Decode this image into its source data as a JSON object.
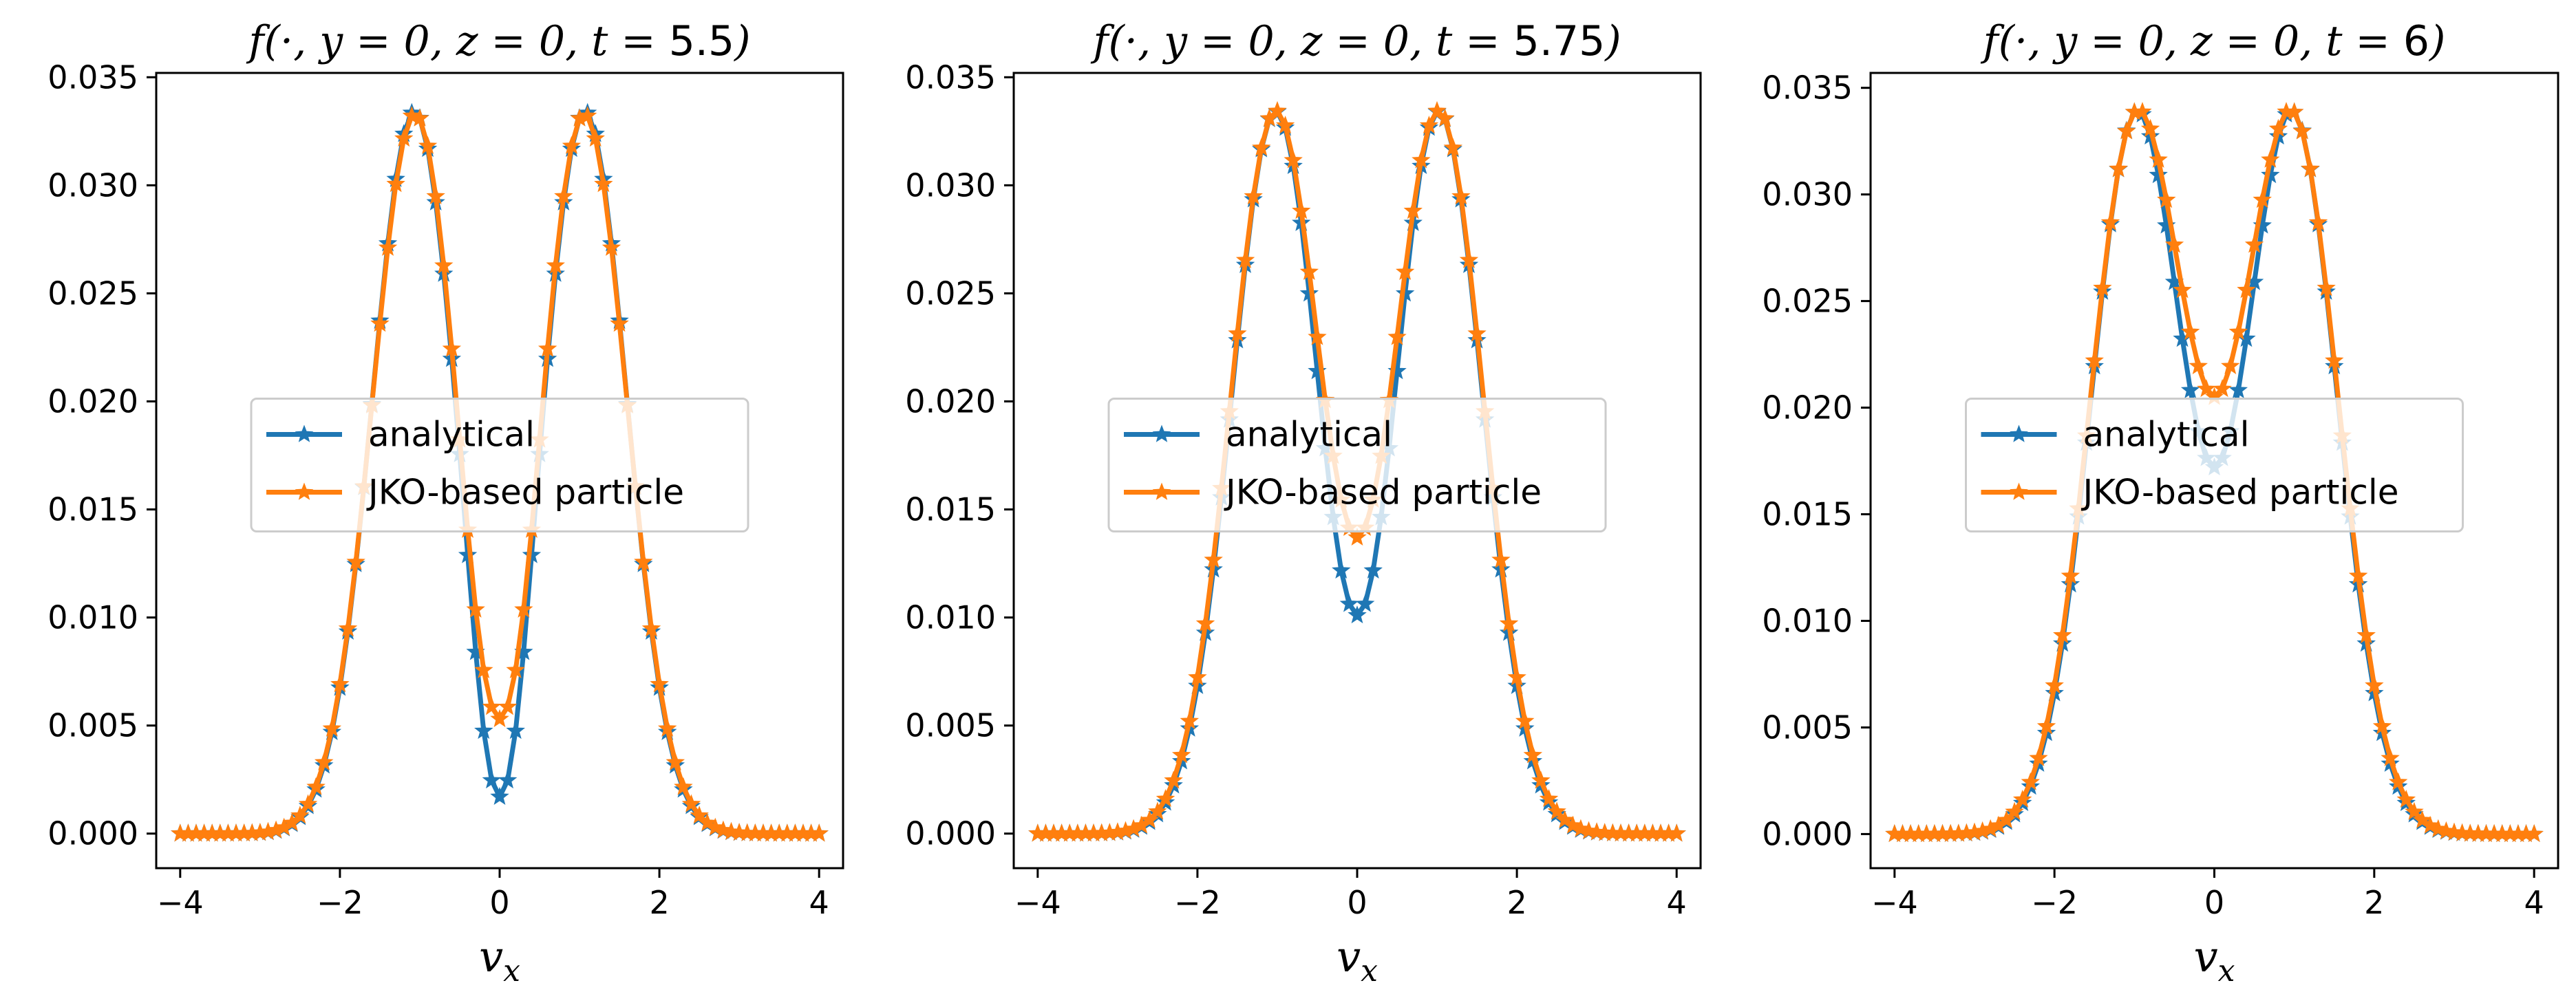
{
  "chart_data": [
    {
      "type": "line",
      "title": "f(·, y = 0, z = 0, t = 5.5)",
      "xlabel": "v_x",
      "ylabel": "",
      "xlim": [
        -4.3,
        4.3
      ],
      "ylim": [
        -0.0016,
        0.0352
      ],
      "xticks": [
        -4,
        -2,
        0,
        2,
        4
      ],
      "xtick_labels": [
        "−4",
        "−2",
        "0",
        "2",
        "4"
      ],
      "yticks": [
        0.0,
        0.005,
        0.01,
        0.015,
        0.02,
        0.025,
        0.03,
        0.035
      ],
      "ytick_labels": [
        "0.000",
        "0.005",
        "0.010",
        "0.015",
        "0.020",
        "0.025",
        "0.030",
        "0.035"
      ],
      "legend_position": "center",
      "x": {
        "start": -4,
        "stop": 4,
        "count": 81
      },
      "series": [
        {
          "name": "analytical",
          "color": "#1f77b4",
          "marker": "star",
          "model": {
            "peak": 0.0334,
            "center": 1.07,
            "sigma": 0.52,
            "dip": 0.0017,
            "dip_sigma": 0.22
          }
        },
        {
          "name": "JKO-based particle",
          "color": "#ff7f0e",
          "marker": "star",
          "model": {
            "peak": 0.0333,
            "center": 1.06,
            "sigma": 0.53,
            "dip": 0.0053,
            "dip_sigma": 0.26
          }
        }
      ]
    },
    {
      "type": "line",
      "title": "f(·, y = 0, z = 0, t = 5.75)",
      "xlabel": "v_x",
      "ylabel": "",
      "xlim": [
        -4.3,
        4.3
      ],
      "ylim": [
        -0.0016,
        0.0352
      ],
      "xticks": [
        -4,
        -2,
        0,
        2,
        4
      ],
      "xtick_labels": [
        "−4",
        "−2",
        "0",
        "2",
        "4"
      ],
      "yticks": [
        0.0,
        0.005,
        0.01,
        0.015,
        0.02,
        0.025,
        0.03,
        0.035
      ],
      "ytick_labels": [
        "0.000",
        "0.005",
        "0.010",
        "0.015",
        "0.020",
        "0.025",
        "0.030",
        "0.035"
      ],
      "legend_position": "center",
      "x": {
        "start": -4,
        "stop": 4,
        "count": 81
      },
      "series": [
        {
          "name": "analytical",
          "color": "#1f77b4",
          "marker": "star",
          "model": {
            "peak": 0.0334,
            "center": 1.02,
            "sigma": 0.55,
            "dip": 0.0101,
            "dip_sigma": 0.28
          }
        },
        {
          "name": "JKO-based particle",
          "color": "#ff7f0e",
          "marker": "star",
          "model": {
            "peak": 0.0334,
            "center": 1.02,
            "sigma": 0.56,
            "dip": 0.0137,
            "dip_sigma": 0.3
          }
        }
      ]
    },
    {
      "type": "line",
      "title": "f(·, y = 0, z = 0, t = 6)",
      "xlabel": "v_x",
      "ylabel": "",
      "xlim": [
        -4.3,
        4.3
      ],
      "ylim": [
        -0.0016,
        0.0357
      ],
      "xticks": [
        -4,
        -2,
        0,
        2,
        4
      ],
      "xtick_labels": [
        "−4",
        "−2",
        "0",
        "2",
        "4"
      ],
      "yticks": [
        0.0,
        0.005,
        0.01,
        0.015,
        0.02,
        0.025,
        0.03,
        0.035
      ],
      "ytick_labels": [
        "0.000",
        "0.005",
        "0.010",
        "0.015",
        "0.020",
        "0.025",
        "0.030",
        "0.035"
      ],
      "legend_position": "center",
      "x": {
        "start": -4,
        "stop": 4,
        "count": 81
      },
      "series": [
        {
          "name": "analytical",
          "color": "#1f77b4",
          "marker": "star",
          "model": {
            "peak": 0.0338,
            "center": 0.97,
            "sigma": 0.57,
            "dip": 0.0172,
            "dip_sigma": 0.32
          }
        },
        {
          "name": "JKO-based particle",
          "color": "#ff7f0e",
          "marker": "star",
          "model": {
            "peak": 0.0337,
            "center": 0.97,
            "sigma": 0.58,
            "dip": 0.0205,
            "dip_sigma": 0.34
          }
        }
      ]
    }
  ]
}
